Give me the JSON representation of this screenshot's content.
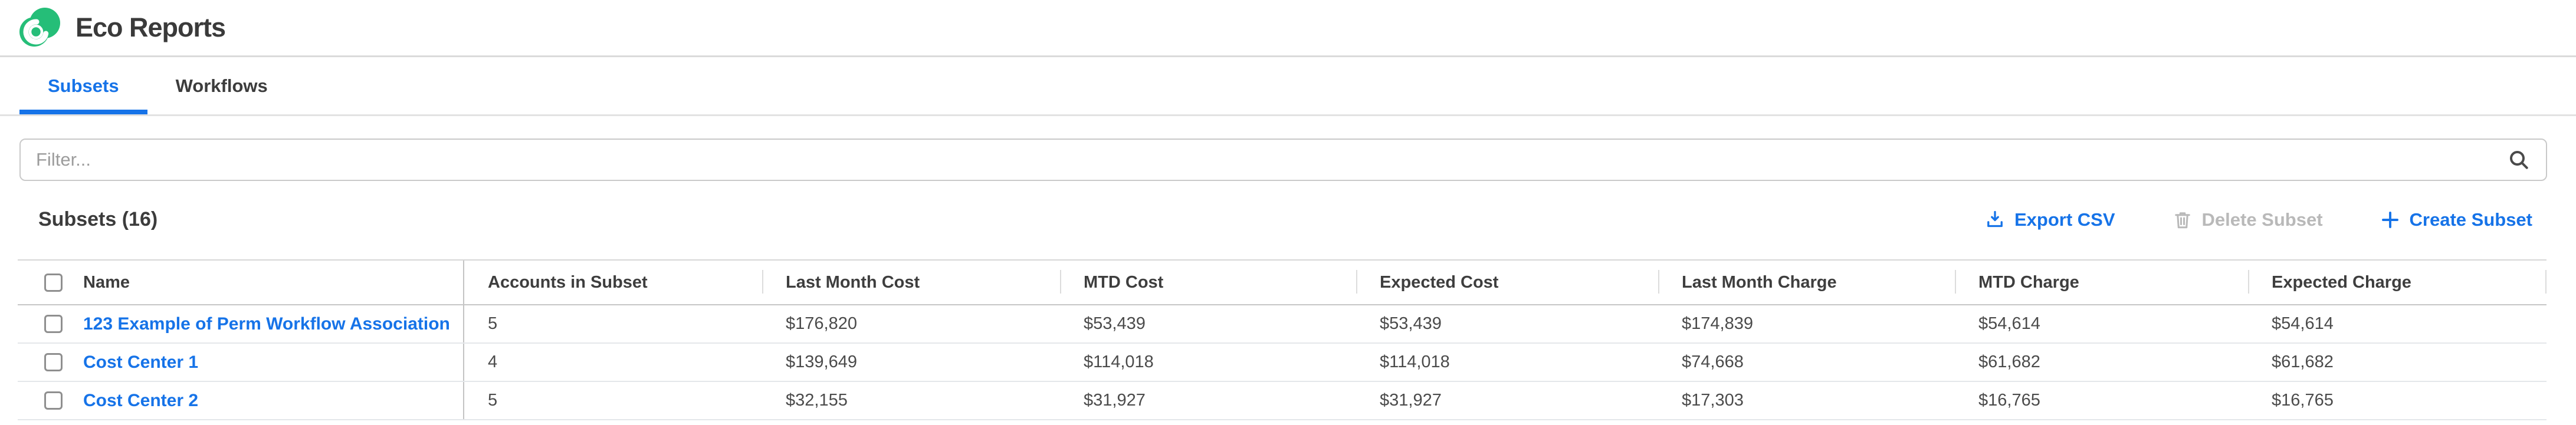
{
  "app": {
    "title": "Eco Reports"
  },
  "tabs": [
    {
      "label": "Subsets",
      "active": true
    },
    {
      "label": "Workflows",
      "active": false
    }
  ],
  "filter": {
    "placeholder": "Filter...",
    "value": "",
    "icon": "search-icon"
  },
  "section": {
    "title": "Subsets (16)",
    "actions": [
      {
        "label": "Export CSV",
        "icon": "download-icon",
        "enabled": true
      },
      {
        "label": "Delete Subset",
        "icon": "trash-icon",
        "enabled": false
      },
      {
        "label": "Create Subset",
        "icon": "plus-icon",
        "enabled": true
      }
    ]
  },
  "table": {
    "select_all_checked": false,
    "columns": [
      "Name",
      "Accounts in Subset",
      "Last Month Cost",
      "MTD Cost",
      "Expected Cost",
      "Last Month Charge",
      "MTD Charge",
      "Expected Charge"
    ],
    "rows": [
      {
        "name": "123 Example of Perm Workflow Association",
        "checked": false,
        "cells": [
          "5",
          "$176,820",
          "$53,439",
          "$53,439",
          "$174,839",
          "$54,614",
          "$54,614"
        ]
      },
      {
        "name": "Cost Center 1",
        "checked": false,
        "cells": [
          "4",
          "$139,649",
          "$114,018",
          "$114,018",
          "$74,668",
          "$61,682",
          "$61,682"
        ]
      },
      {
        "name": "Cost Center 2",
        "checked": false,
        "cells": [
          "5",
          "$32,155",
          "$31,927",
          "$31,927",
          "$17,303",
          "$16,765",
          "$16,765"
        ]
      }
    ]
  },
  "colors": {
    "accent_blue": "#1673e8",
    "brand_green": "#25be78",
    "disabled_gray": "#b9b9b9",
    "text_dark": "#3d3d3d",
    "text_body": "#4b4b4b"
  }
}
